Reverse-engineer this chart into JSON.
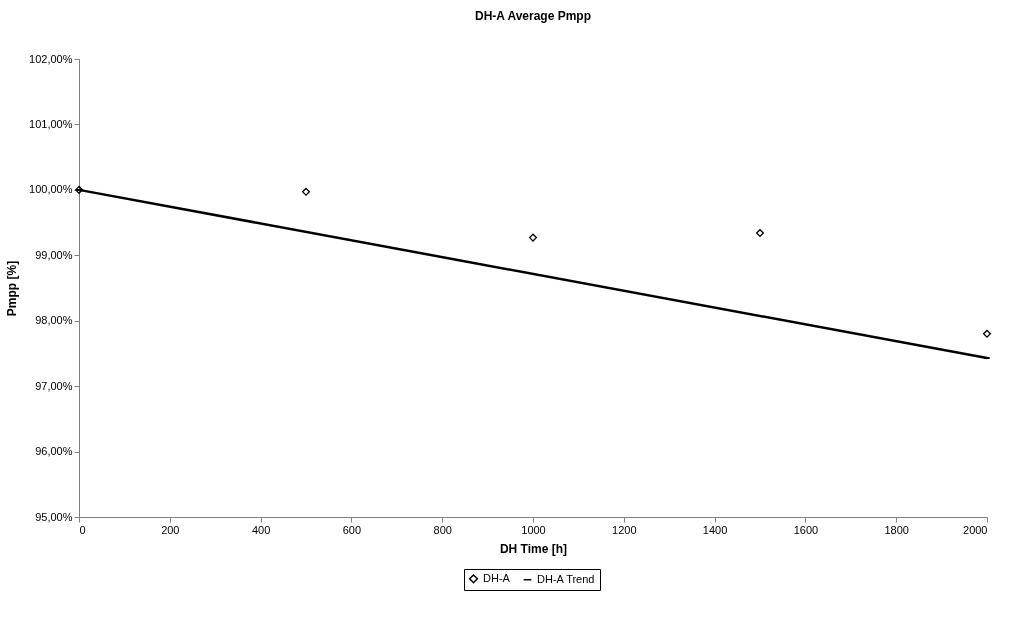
{
  "chart_data": {
    "type": "scatter",
    "title": "DH-A Average Pmpp",
    "xlabel": "DH Time [h]",
    "ylabel": "Pmpp [%]",
    "x": [
      0,
      500,
      1000,
      1500,
      2000
    ],
    "series": [
      {
        "name": "DH-A",
        "type": "scatter",
        "color": "#000000",
        "marker": "diamond",
        "values": [
          100.0,
          99.97,
          99.27,
          99.34,
          97.8
        ]
      },
      {
        "name": "DH-A Trend",
        "type": "line",
        "color": "#000000",
        "line_style": "solid",
        "x": [
          0,
          2000
        ],
        "values": [
          100.0,
          97.43
        ]
      }
    ],
    "xlim": [
      0,
      2000
    ],
    "xticks": [
      0,
      200,
      400,
      600,
      800,
      1000,
      1200,
      1400,
      1600,
      1800,
      2000
    ],
    "ylim": [
      95,
      102
    ],
    "yticks": [
      {
        "value": 95,
        "label": "95,00%"
      },
      {
        "value": 96,
        "label": "96,00%"
      },
      {
        "value": 97,
        "label": "97,00%"
      },
      {
        "value": 98,
        "label": "98,00%"
      },
      {
        "value": 99,
        "label": "99,00%"
      },
      {
        "value": 100,
        "label": "100,00%"
      },
      {
        "value": 101,
        "label": "101,00%"
      },
      {
        "value": 102,
        "label": "102,00%"
      }
    ],
    "grid": false,
    "legend": "bottom"
  }
}
